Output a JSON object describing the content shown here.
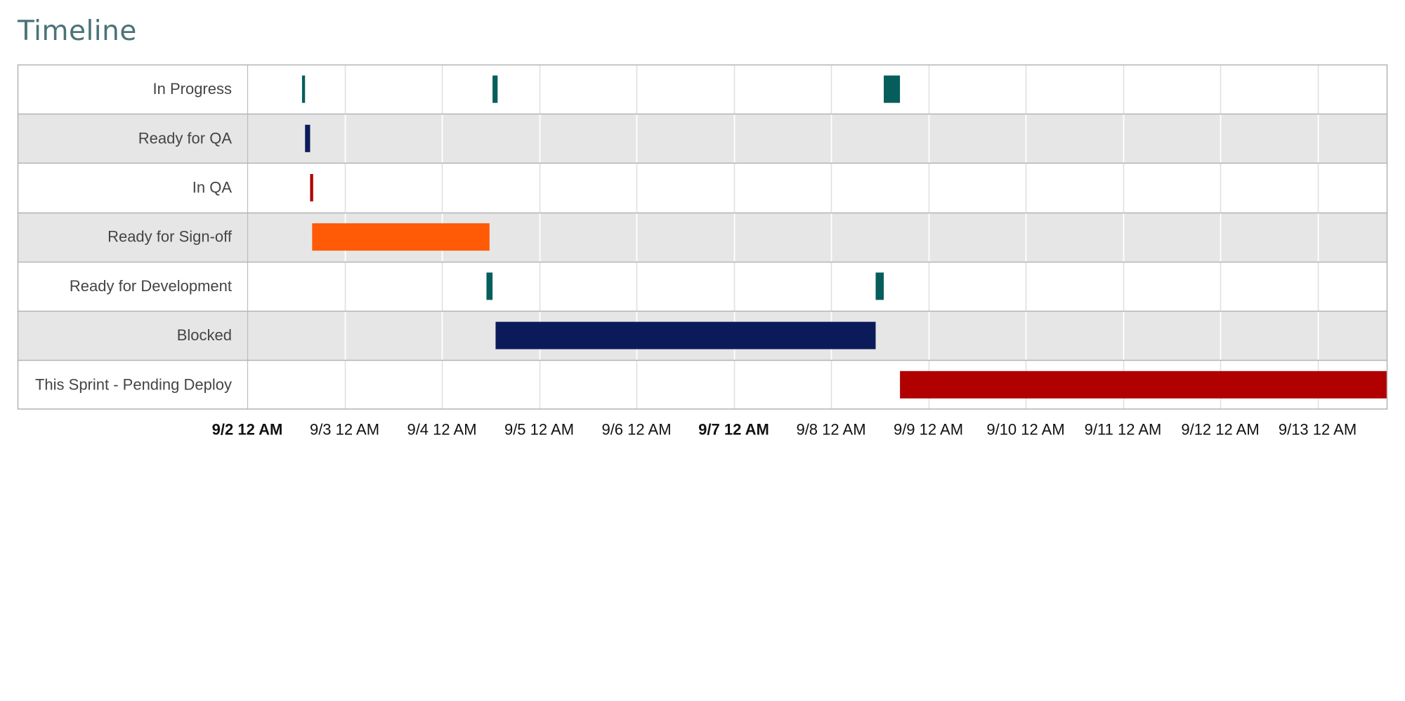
{
  "title": "Timeline",
  "chart_data": {
    "type": "bar",
    "subtype": "timeline",
    "title": "Timeline",
    "rows": [
      "In Progress",
      "Ready for QA",
      "In QA",
      "Ready for Sign-off",
      "Ready for Development",
      "Blocked",
      "This Sprint - Pending Deploy"
    ],
    "x_domain": [
      "2017-09-02T00:00",
      "2017-09-13T18:00"
    ],
    "ticks": [
      {
        "at": "2017-09-02T00:00",
        "label": "9/2 12 AM",
        "bold": true
      },
      {
        "at": "2017-09-03T00:00",
        "label": "9/3 12 AM",
        "bold": false
      },
      {
        "at": "2017-09-04T00:00",
        "label": "9/4 12 AM",
        "bold": false
      },
      {
        "at": "2017-09-05T00:00",
        "label": "9/5 12 AM",
        "bold": false
      },
      {
        "at": "2017-09-06T00:00",
        "label": "9/6 12 AM",
        "bold": false
      },
      {
        "at": "2017-09-07T00:00",
        "label": "9/7 12 AM",
        "bold": true
      },
      {
        "at": "2017-09-08T00:00",
        "label": "9/8 12 AM",
        "bold": false
      },
      {
        "at": "2017-09-09T00:00",
        "label": "9/9 12 AM",
        "bold": false
      },
      {
        "at": "2017-09-10T00:00",
        "label": "9/10 12 AM",
        "bold": false
      },
      {
        "at": "2017-09-11T00:00",
        "label": "9/11 12 AM",
        "bold": false
      },
      {
        "at": "2017-09-12T00:00",
        "label": "9/12 12 AM",
        "bold": false
      },
      {
        "at": "2017-09-13T00:00",
        "label": "9/13 12 AM",
        "bold": false
      }
    ],
    "bars": [
      {
        "row": "In Progress",
        "start": "2017-09-02T13:30",
        "end": "2017-09-02T14:15",
        "color": "#065e5c"
      },
      {
        "row": "In Progress",
        "start": "2017-09-04T12:30",
        "end": "2017-09-04T13:45",
        "color": "#065e5c"
      },
      {
        "row": "In Progress",
        "start": "2017-09-08T13:00",
        "end": "2017-09-08T17:00",
        "color": "#065e5c"
      },
      {
        "row": "Ready for QA",
        "start": "2017-09-02T14:15",
        "end": "2017-09-02T15:30",
        "color": "#0b1b5a"
      },
      {
        "row": "In QA",
        "start": "2017-09-02T15:30",
        "end": "2017-09-02T16:15",
        "color": "#b00000"
      },
      {
        "row": "Ready for Sign-off",
        "start": "2017-09-02T16:00",
        "end": "2017-09-04T11:45",
        "color": "#ff5a05"
      },
      {
        "row": "Ready for Development",
        "start": "2017-09-04T11:00",
        "end": "2017-09-04T12:30",
        "color": "#065e5c"
      },
      {
        "row": "Ready for Development",
        "start": "2017-09-08T11:00",
        "end": "2017-09-08T13:00",
        "color": "#065e5c"
      },
      {
        "row": "Blocked",
        "start": "2017-09-04T13:15",
        "end": "2017-09-08T11:00",
        "color": "#0b1b5a"
      },
      {
        "row": "This Sprint - Pending Deploy",
        "start": "2017-09-08T17:00",
        "end": "2017-09-13T18:00",
        "color": "#b00000"
      }
    ],
    "row_shading": [
      "#ffffff",
      "#e6e6e6"
    ],
    "grid": true
  }
}
